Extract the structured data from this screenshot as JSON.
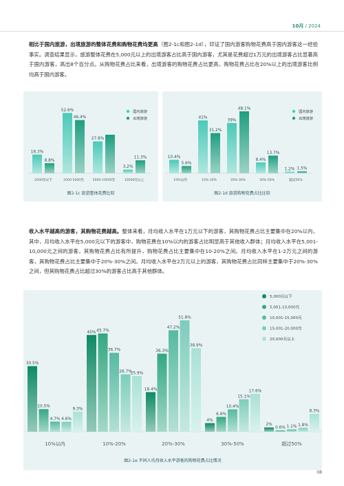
{
  "header": {
    "month": "10月",
    "separator": " / ",
    "year": "2024"
  },
  "para1": {
    "lead": "相比于国内旅游，出境旅游的整体花费和购物花费均更高",
    "body": "（图2-1c和图2-1d），印证了国内游客购物花费高于国内游客这一经验事实。调查结果显示，旅游整体花费在5,000元以上的出境游客占比高于国内游客，尤其是花费超过1万元的出境游客占比显著高于国内游客，高出8个百分点。从购物花费占比来看，出境游客的购物花费占比更高，购物花费占比在20%以上的出境游客比例均高于国内游客。"
  },
  "para2": {
    "lead": "收入水平越高的游客，其购物花费越高。",
    "body": "整体来看，月均收入水平在1万元以下的游客，其购物花费占比主要集中在20%以内，其中，月均收入水平在5,000元以下的游客中，购物花费在10%以内的游客占比明显高于其他收入群体；月均收入水平在5,001-10,000元之间的游客，其购物花费占比有所提升，购物花费占比主要集中在10-20%之间。月均收入水平在1-2万元之间的游客，其购物花费占比主要集中于20%-30%之间。月均收入水平在2万元以上的游客，其购物花费占比同样主要集中于20%-30%之间，但其购物花费占比超过30%的游客占比高于其他群体。"
  },
  "captions": {
    "c": "图2-1c 旅游整体花费比较",
    "d": "图2-1d 旅游购物花费占比比较",
    "e": "图2-1e 不同人均月收入水平游客的购物花费占比情况"
  },
  "page_number": "08",
  "colors": {
    "domestic": "#4cc9b8",
    "outbound": "#1f9e80",
    "panel_bg": "#eaf3f4",
    "accent_text": "#2e8b7a",
    "income_tiers": [
      "#0e8a63",
      "#33a882",
      "#56baa1",
      "#7ccdbb",
      "#a9e1d6"
    ]
  },
  "chart_data": [
    {
      "type": "bar",
      "title": "图2-1c 旅游整体花费比较",
      "categories": [
        "2000元以下",
        "2000-5000元",
        "5000-10000元",
        "10000元以上"
      ],
      "series": [
        {
          "name": "国内旅游",
          "values": [
            16.3,
            52.6,
            27.8,
            3.2
          ],
          "labels": [
            "16.3%",
            "52.6%",
            "27.8%",
            "3.2%"
          ]
        },
        {
          "name": "出境旅游",
          "values": [
            8.8,
            46.4,
            33.6,
            11.3
          ],
          "labels": [
            "8.8%",
            "46.4%",
            "",
            "11.3%"
          ]
        }
      ],
      "ylim": [
        0,
        60
      ],
      "legend": "top-right"
    },
    {
      "type": "bar",
      "title": "图2-1d 旅游购物花费占比比较",
      "categories": [
        "10%以内",
        "10%-20%",
        "20%-30%",
        "30%-50%",
        "超过50%"
      ],
      "series": [
        {
          "name": "国内旅游",
          "values": [
            10.4,
            41,
            39,
            8.4,
            1.2
          ],
          "labels": [
            "10.4%",
            "41%",
            "39%",
            "8.4%",
            "1.2%"
          ]
        },
        {
          "name": "出境旅游",
          "values": [
            5.6,
            31.2,
            48.1,
            13.7,
            1.5
          ],
          "labels": [
            "5.6%",
            "31.2%",
            "48.1%",
            "13.7%",
            "1.5%"
          ]
        }
      ],
      "ylim": [
        0,
        55
      ],
      "legend": "top-right"
    },
    {
      "type": "bar",
      "title": "图2-1e 不同人均月收入水平游客的购物花费占比情况",
      "categories": [
        "10%以内",
        "10%-20%",
        "20%-30%",
        "30%-50%",
        "超过50%"
      ],
      "series": [
        {
          "name": "5,000元以下",
          "values": [
            30.5,
            45,
            18.4,
            4,
            2
          ],
          "labels": [
            "30.5%",
            "45%",
            "18.4%",
            "4%",
            "2%"
          ]
        },
        {
          "name": "5,001-10,000元",
          "values": [
            10.5,
            45.7,
            36.3,
            6.9,
            0.6
          ],
          "labels": [
            "10.5%",
            "45.7%",
            "36.3%",
            "6.9%",
            "0.6%"
          ]
        },
        {
          "name": "10,001-15,000元",
          "values": [
            4.7,
            36.7,
            47.2,
            10.4,
            1.1
          ],
          "labels": [
            "4.7%",
            "36.7%",
            "47.2%",
            "10.4%",
            "1.1%"
          ]
        },
        {
          "name": "15,001-20,000元",
          "values": [
            4.6,
            26.7,
            51.8,
            15.1,
            1.8
          ],
          "labels": [
            "4.6%",
            "26.7%",
            "51.8%",
            "15.1%",
            "1.8%"
          ]
        },
        {
          "name": "20,000元以上",
          "values": [
            9.3,
            25.9,
            38.9,
            17.6,
            8.3
          ],
          "labels": [
            "9.3%",
            "25.9%",
            "38.9%",
            "17.6%",
            "8.3%"
          ]
        }
      ],
      "ylim": [
        0,
        55
      ],
      "legend": "top-right"
    }
  ]
}
